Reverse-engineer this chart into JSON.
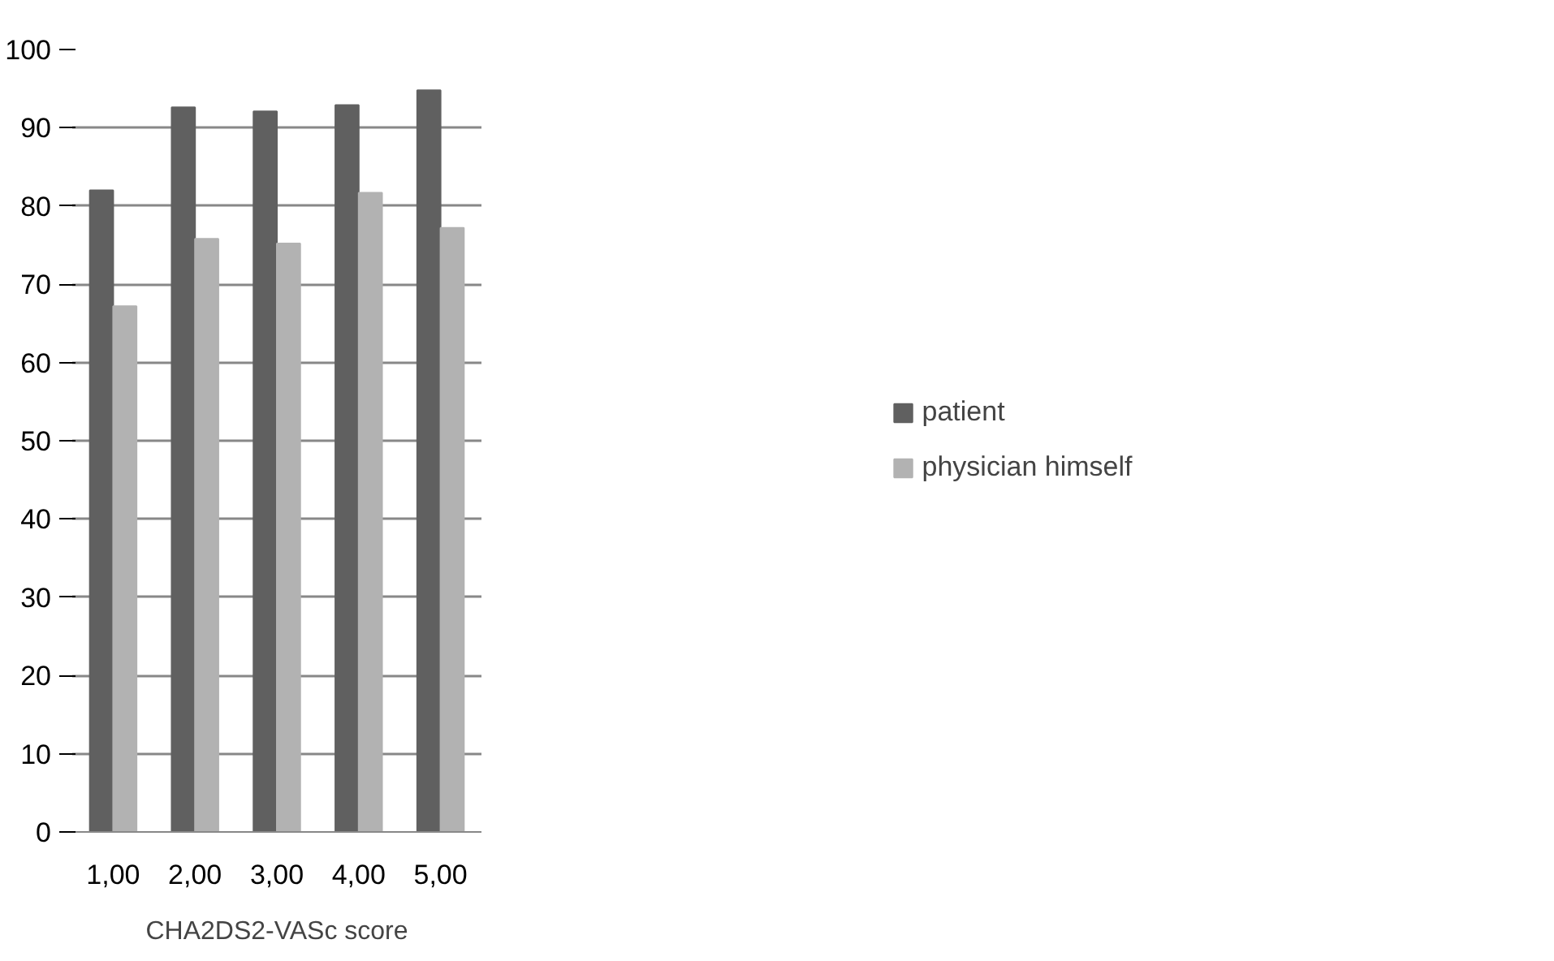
{
  "chart_data": {
    "type": "bar",
    "xlabel": "CHA2DS2-VASc score",
    "categories": [
      "1,00",
      "2,00",
      "3,00",
      "4,00",
      "5,00"
    ],
    "series": [
      {
        "name": "patient",
        "color": "#606060",
        "values": [
          82.0,
          92.6,
          92.1,
          92.9,
          94.8
        ]
      },
      {
        "name": "physician himself",
        "color": "#b2b2b2",
        "values": [
          67.2,
          75.8,
          75.2,
          81.7,
          77.2
        ]
      }
    ],
    "ylim": [
      0,
      100
    ],
    "yticks": [
      0,
      10,
      20,
      30,
      40,
      50,
      60,
      70,
      80,
      90,
      100
    ],
    "grid": "y",
    "legend": "right"
  }
}
